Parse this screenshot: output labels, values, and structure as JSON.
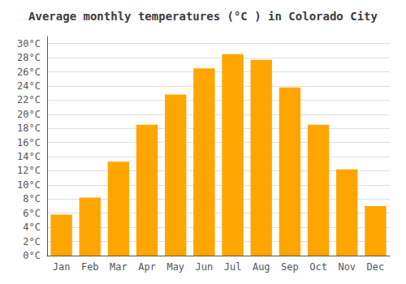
{
  "chart_data": {
    "type": "bar",
    "title": "Average monthly temperatures (°C ) in Colorado City",
    "categories": [
      "Jan",
      "Feb",
      "Mar",
      "Apr",
      "May",
      "Jun",
      "Jul",
      "Aug",
      "Sep",
      "Oct",
      "Nov",
      "Dec"
    ],
    "values": [
      5.8,
      8.2,
      13.3,
      18.5,
      22.8,
      26.5,
      28.5,
      27.7,
      23.8,
      18.5,
      12.2,
      7.0
    ],
    "color": "#FFA500",
    "ylim": [
      0,
      31
    ],
    "yticks": [
      {
        "value": 0,
        "label": "0°C"
      },
      {
        "value": 2,
        "label": "2°C"
      },
      {
        "value": 4,
        "label": "4°C"
      },
      {
        "value": 6,
        "label": "6°C"
      },
      {
        "value": 8,
        "label": "8°C"
      },
      {
        "value": 10,
        "label": "10°C"
      },
      {
        "value": 12,
        "label": "12°C"
      },
      {
        "value": 14,
        "label": "14°C"
      },
      {
        "value": 16,
        "label": "16°C"
      },
      {
        "value": 18,
        "label": "18°C"
      },
      {
        "value": 20,
        "label": "20°C"
      },
      {
        "value": 22,
        "label": "22°C"
      },
      {
        "value": 24,
        "label": "24°C"
      },
      {
        "value": 26,
        "label": "26°C"
      },
      {
        "value": 28,
        "label": "28°C"
      },
      {
        "value": 30,
        "label": "30°C"
      }
    ],
    "grid": true
  }
}
